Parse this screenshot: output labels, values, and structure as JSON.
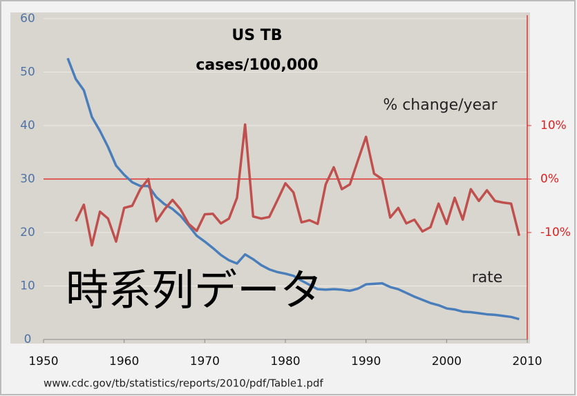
{
  "chart_data": {
    "type": "line",
    "title": "US TB",
    "subtitle": "cases/100,000",
    "overlay_text": "時系列データ",
    "source": "www.cdc.gov/tb/statistics/reports/2010/pdf/Table1.pdf",
    "xlim": [
      1950,
      2010
    ],
    "xticks": [
      1950,
      1960,
      1970,
      1980,
      1990,
      2000,
      2010
    ],
    "ylim": [
      0,
      60
    ],
    "yticks": [
      0,
      10,
      20,
      30,
      40,
      50,
      60
    ],
    "y2lim": [
      -30,
      30
    ],
    "y2ticks": [
      {
        "value": -10,
        "label": "-10%"
      },
      {
        "value": 0,
        "label": "0%"
      },
      {
        "value": 10,
        "label": "10%"
      }
    ],
    "y2_reference_line": 0,
    "grid": true,
    "series": [
      {
        "name": "rate",
        "color": "#4a7ebb",
        "x": [
          1953,
          1954,
          1955,
          1956,
          1957,
          1958,
          1959,
          1960,
          1961,
          1962,
          1963,
          1964,
          1965,
          1966,
          1967,
          1968,
          1969,
          1970,
          1971,
          1972,
          1973,
          1974,
          1975,
          1976,
          1977,
          1978,
          1979,
          1980,
          1981,
          1982,
          1983,
          1984,
          1985,
          1986,
          1987,
          1988,
          1989,
          1990,
          1991,
          1992,
          1993,
          1994,
          1995,
          1996,
          1997,
          1998,
          1999,
          2000,
          2001,
          2002,
          2003,
          2004,
          2005,
          2006,
          2007,
          2008,
          2009
        ],
        "values": [
          52.6,
          48.7,
          46.6,
          41.6,
          39.0,
          36.0,
          32.5,
          30.8,
          29.4,
          28.7,
          28.7,
          26.6,
          25.3,
          24.4,
          23.1,
          21.3,
          19.4,
          18.3,
          17.1,
          15.8,
          14.8,
          14.2,
          15.9,
          15.0,
          13.9,
          13.1,
          12.6,
          12.3,
          11.9,
          11.0,
          10.2,
          9.4,
          9.3,
          9.4,
          9.3,
          9.1,
          9.5,
          10.3,
          10.4,
          10.5,
          9.8,
          9.4,
          8.7,
          8.0,
          7.4,
          6.8,
          6.4,
          5.8,
          5.6,
          5.2,
          5.1,
          4.9,
          4.7,
          4.6,
          4.4,
          4.2,
          3.8
        ]
      },
      {
        "name": "% change/year",
        "color": "#c0504d",
        "axis": "y2",
        "x": [
          1954,
          1955,
          1956,
          1957,
          1958,
          1959,
          1960,
          1961,
          1962,
          1963,
          1964,
          1965,
          1966,
          1967,
          1968,
          1969,
          1970,
          1971,
          1972,
          1973,
          1974,
          1975,
          1976,
          1977,
          1978,
          1979,
          1980,
          1981,
          1982,
          1983,
          1984,
          1985,
          1986,
          1987,
          1988,
          1989,
          1990,
          1991,
          1992,
          1993,
          1994,
          1995,
          1996,
          1997,
          1998,
          1999,
          2000,
          2001,
          2002,
          2003,
          2004,
          2005,
          2006,
          2007,
          2008,
          2009
        ],
        "values": [
          -7.9,
          -4.8,
          -12.4,
          -6.1,
          -7.4,
          -11.7,
          -5.4,
          -5.0,
          -1.9,
          0,
          -7.9,
          -5.7,
          -3.9,
          -5.7,
          -8.4,
          -9.7,
          -6.6,
          -6.5,
          -8.3,
          -7.4,
          -3.5,
          10.2,
          -7.0,
          -7.4,
          -7.1,
          -4.0,
          -0.8,
          -2.5,
          -8.1,
          -7.7,
          -8.4,
          -1.0,
          2.2,
          -1.9,
          -1.0,
          3.5,
          7.9,
          1.0,
          0,
          -7.2,
          -5.4,
          -8.3,
          -7.6,
          -9.8,
          -9.0,
          -4.6,
          -8.4,
          -3.5,
          -7.6,
          -1.9,
          -4.1,
          -2.1,
          -4.1,
          -4.4,
          -4.6,
          -10.6
        ]
      }
    ]
  }
}
